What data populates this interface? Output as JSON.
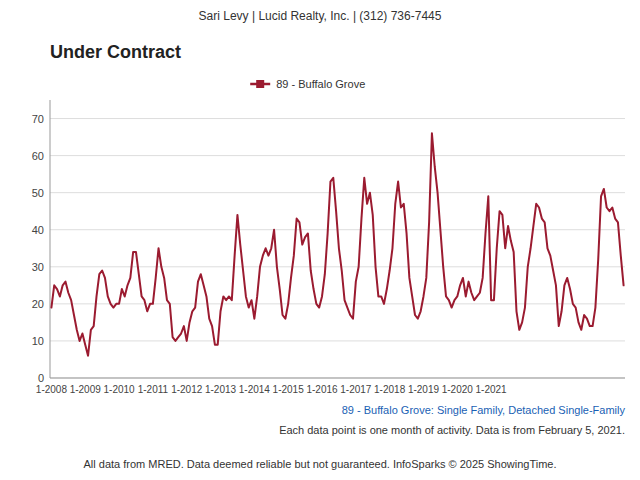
{
  "chart_data": {
    "type": "line",
    "title": "Under Contract",
    "subtitle": "89 - Buffalo Grove: Single Family, Detached Single-Family",
    "annotations": [
      "Sari Levy | Lucid Realty, Inc. | (312) 736-7445",
      "Each data point is one month of activity. Data is from February 5, 2021.",
      "All data from MRED. Data deemed reliable but not guaranteed. InfoSparks © 2025 ShowingTime."
    ],
    "categories": [
      "1-2008",
      null,
      null,
      null,
      null,
      null,
      null,
      null,
      null,
      null,
      null,
      null,
      "1-2009",
      null,
      null,
      null,
      null,
      null,
      null,
      null,
      null,
      null,
      null,
      null,
      "1-2010",
      null,
      null,
      null,
      null,
      null,
      null,
      null,
      null,
      null,
      null,
      null,
      "1-2011",
      null,
      null,
      null,
      null,
      null,
      null,
      null,
      null,
      null,
      null,
      null,
      "1-2012",
      null,
      null,
      null,
      null,
      null,
      null,
      null,
      null,
      null,
      null,
      null,
      "1-2013",
      null,
      null,
      null,
      null,
      null,
      null,
      null,
      null,
      null,
      null,
      null,
      "1-2014",
      null,
      null,
      null,
      null,
      null,
      null,
      null,
      null,
      null,
      null,
      null,
      "1-2015",
      null,
      null,
      null,
      null,
      null,
      null,
      null,
      null,
      null,
      null,
      null,
      "1-2016",
      null,
      null,
      null,
      null,
      null,
      null,
      null,
      null,
      null,
      null,
      null,
      "1-2017",
      null,
      null,
      null,
      null,
      null,
      null,
      null,
      null,
      null,
      null,
      null,
      "1-2018",
      null,
      null,
      null,
      null,
      null,
      null,
      null,
      null,
      null,
      null,
      null,
      "1-2019",
      null,
      null,
      null,
      null,
      null,
      null,
      null,
      null,
      null,
      null,
      null,
      "1-2020",
      null,
      null,
      null,
      null,
      null,
      null,
      null,
      null,
      null,
      null,
      null,
      "1-2021",
      null,
      null,
      null,
      null,
      null,
      null,
      null,
      null,
      null,
      null,
      null,
      null,
      null,
      null,
      null,
      null,
      null,
      null,
      null,
      null,
      null,
      null,
      null,
      null,
      null,
      null,
      null,
      null,
      null,
      null,
      null,
      null,
      null,
      null,
      null,
      null,
      null,
      null,
      null,
      null,
      null,
      null,
      null,
      null,
      null,
      null,
      null
    ],
    "series": [
      {
        "name": "89 - Buffalo Grove",
        "color": "#9B1B30",
        "values": [
          19,
          25,
          24,
          22,
          25,
          26,
          23,
          21,
          17,
          13,
          10,
          12,
          9,
          6,
          13,
          14,
          22,
          28,
          29,
          27,
          22,
          20,
          19,
          20,
          20,
          24,
          22,
          25,
          27,
          34,
          34,
          28,
          22,
          21,
          18,
          20,
          20,
          27,
          35,
          30,
          27,
          21,
          20,
          11,
          10,
          11,
          12,
          14,
          10,
          15,
          18,
          19,
          26,
          28,
          25,
          22,
          16,
          14,
          9,
          9,
          18,
          22,
          21,
          22,
          21,
          33,
          44,
          36,
          29,
          22,
          19,
          21,
          16,
          22,
          30,
          33,
          35,
          33,
          35,
          40,
          30,
          24,
          17,
          16,
          20,
          27,
          33,
          43,
          42,
          36,
          38,
          39,
          29,
          24,
          20,
          19,
          22,
          28,
          39,
          53,
          54,
          45,
          35,
          29,
          21,
          19,
          17,
          16,
          26,
          30,
          43,
          54,
          47,
          50,
          44,
          30,
          22,
          22,
          20,
          24,
          29,
          35,
          47,
          53,
          46,
          47,
          39,
          27,
          22,
          17,
          16,
          18,
          22,
          27,
          42,
          66,
          57,
          50,
          40,
          30,
          22,
          21,
          19,
          21,
          22,
          25,
          27,
          22,
          26,
          23,
          21,
          22,
          23,
          27,
          39,
          49,
          21,
          21,
          35,
          45,
          44,
          35,
          41,
          37,
          34,
          18,
          13,
          15,
          19,
          30,
          35,
          41,
          47,
          46,
          43,
          42,
          35,
          33,
          29,
          25,
          14,
          18,
          25,
          27,
          24,
          20,
          19,
          15,
          13,
          17,
          16,
          14,
          14,
          19,
          32,
          49,
          51,
          46,
          45,
          46,
          43,
          42,
          33,
          25
        ]
      }
    ],
    "ylim": [
      0,
      75
    ],
    "yticks": [
      0,
      10,
      20,
      30,
      40,
      50,
      60,
      70
    ],
    "grid": true,
    "legend": "top"
  }
}
